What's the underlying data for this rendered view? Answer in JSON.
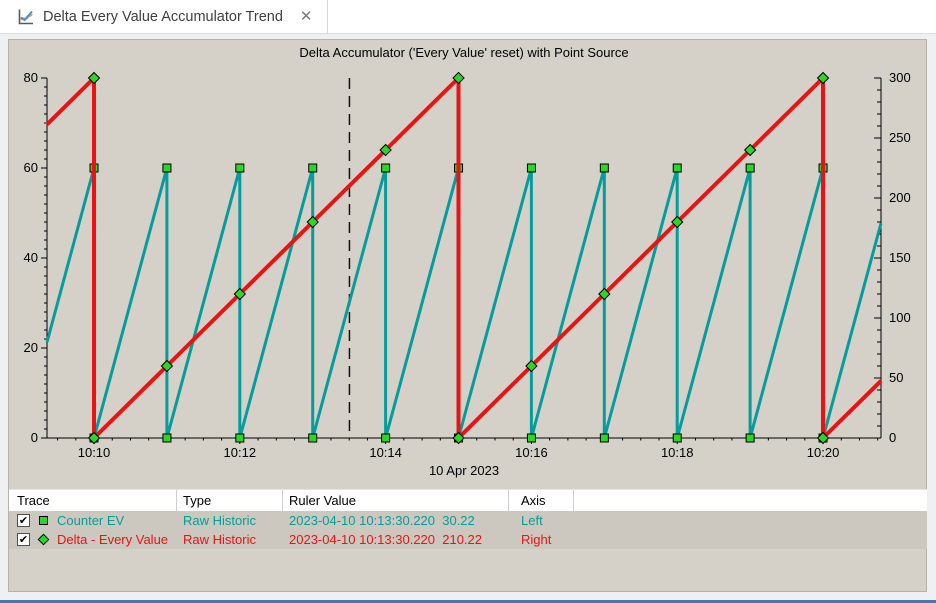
{
  "tab": {
    "title": "Delta Every Value Accumulator Trend",
    "close_glyph": "✕",
    "icon": "trend-chart-icon"
  },
  "colors": {
    "counter_series": "#069c9c",
    "delta_series": "#e81414",
    "marker_green": "#2ad626",
    "panel_bg": "#d5d1c9",
    "row_bg": "#ccc8c0",
    "ruler": "#111111"
  },
  "chart_data": {
    "type": "line",
    "title": "Delta Accumulator ('Every Value' reset) with Point Source",
    "x_axis": {
      "date_label": "10 Apr 2023",
      "labeled_ticks": [
        "10:10",
        "10:12",
        "10:14",
        "10:16",
        "10:18",
        "10:20"
      ],
      "labeled_tick_minutes": [
        0,
        2,
        4,
        6,
        8,
        10
      ],
      "range_minutes": [
        -0.645,
        10.795
      ],
      "minute_tick_step": 1,
      "minor_tick_step_minutes": 0.25
    },
    "left_axis": {
      "range": [
        0,
        80
      ],
      "major_ticks": [
        0,
        20,
        40,
        60,
        80
      ],
      "minor_step": 2
    },
    "right_axis": {
      "range": [
        0,
        300
      ],
      "major_ticks": [
        0,
        50,
        100,
        150,
        200,
        250,
        300
      ],
      "minor_step": 10
    },
    "ruler": {
      "time_label": "10:13:30.220",
      "time_minutes": 3.5037
    },
    "series": [
      {
        "name": "Counter EV",
        "axis": "left",
        "color": "#069c9c",
        "line_width": 3,
        "marker": "square",
        "marker_color": "#2ad626",
        "points": [
          [
            -0.645,
            21.3,
            0
          ],
          [
            0,
            60,
            1
          ],
          [
            0,
            0,
            1
          ],
          [
            1,
            60,
            1
          ],
          [
            1,
            0,
            1
          ],
          [
            2,
            60,
            1
          ],
          [
            2,
            0,
            1
          ],
          [
            3,
            60,
            1
          ],
          [
            3,
            0,
            1
          ],
          [
            4,
            60,
            1
          ],
          [
            4,
            0,
            1
          ],
          [
            5,
            60,
            1
          ],
          [
            5,
            0,
            1
          ],
          [
            6,
            60,
            1
          ],
          [
            6,
            0,
            1
          ],
          [
            7,
            60,
            1
          ],
          [
            7,
            0,
            1
          ],
          [
            8,
            60,
            1
          ],
          [
            8,
            0,
            1
          ],
          [
            9,
            60,
            1
          ],
          [
            9,
            0,
            1
          ],
          [
            10,
            60,
            1
          ],
          [
            10,
            0,
            1
          ],
          [
            10.795,
            47.7,
            0
          ]
        ]
      },
      {
        "name": "Delta - Every Value",
        "axis": "right",
        "color": "#e81414",
        "line_width": 4,
        "marker": "diamond",
        "marker_color": "#2ad626",
        "points": [
          [
            -0.645,
            261.3,
            0
          ],
          [
            0,
            300,
            1
          ],
          [
            0,
            0,
            1
          ],
          [
            1,
            60,
            1
          ],
          [
            2,
            120,
            1
          ],
          [
            3,
            180,
            1
          ],
          [
            4,
            240,
            1
          ],
          [
            5,
            300,
            1
          ],
          [
            5,
            0,
            1
          ],
          [
            6,
            60,
            1
          ],
          [
            7,
            120,
            1
          ],
          [
            8,
            180,
            1
          ],
          [
            9,
            240,
            1
          ],
          [
            10,
            300,
            1
          ],
          [
            10,
            0,
            1
          ],
          [
            10.795,
            47.7,
            0
          ]
        ]
      }
    ]
  },
  "legend": {
    "columns": [
      "Trace",
      "Type",
      "Ruler Value",
      "Axis"
    ],
    "rows": [
      {
        "checked": true,
        "marker": "square",
        "marker_color": "#2ad626",
        "name": "Counter EV",
        "type": "Raw Historic",
        "ruler_value": "2023-04-10 10:13:30.220  30.22",
        "axis": "Left",
        "text_color": "#069c9c"
      },
      {
        "checked": true,
        "marker": "diamond",
        "marker_color": "#2ad626",
        "name": "Delta - Every Value",
        "type": "Raw Historic",
        "ruler_value": "2023-04-10 10:13:30.220  210.22",
        "axis": "Right",
        "text_color": "#e81414"
      }
    ],
    "check_glyph": "✔"
  }
}
